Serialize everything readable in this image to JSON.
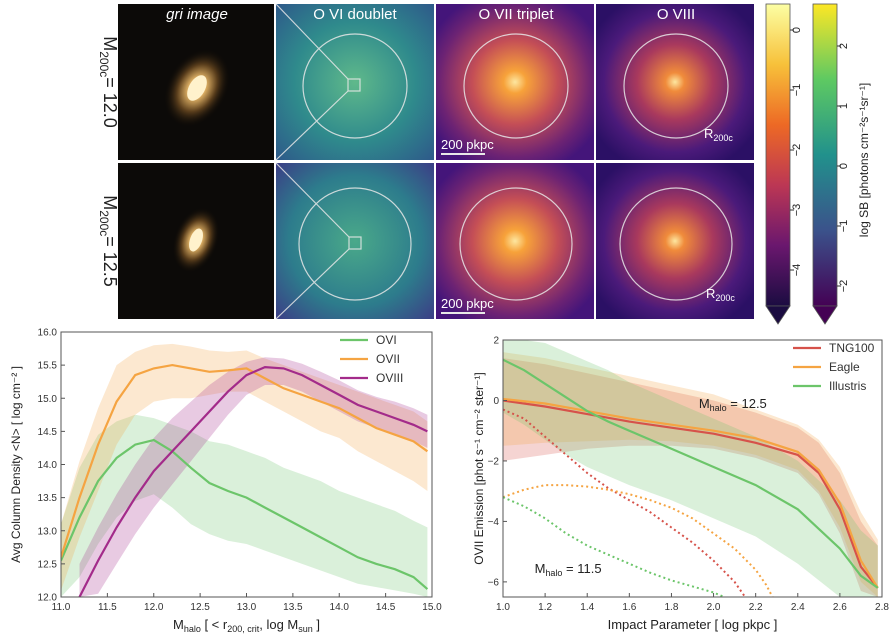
{
  "top_panel": {
    "column_titles": [
      "gri image",
      "O VI doublet",
      "O VII triplet",
      "O VIII"
    ],
    "row_labels": [
      {
        "sym": "M",
        "sub": "200c",
        "val": "= 12.0"
      },
      {
        "sym": "M",
        "sub": "200c",
        "val": "= 12.5"
      }
    ],
    "scalebar_label": "200 pkpc",
    "radius_label": {
      "sym": "R",
      "sub": "200c"
    },
    "colorbar_label": "log SB [photons cm⁻²s⁻¹sr⁻¹]",
    "colorbar_inferno_ticks": [
      "0",
      "−1",
      "−2",
      "−3",
      "−4"
    ],
    "colorbar_viridis_ticks": [
      "2",
      "1",
      "0",
      "−1",
      "−2"
    ]
  },
  "chart_data": [
    {
      "type": "line",
      "ylabel": "Avg Column Density <N> [ log cm⁻² ]",
      "xlabel": {
        "sym": "M",
        "sub": "halo",
        "rest": " [ < r",
        "sub2": "200, crit",
        "rest2": ", log M",
        "sub3": "sun",
        "rest3": " ]"
      },
      "xlim": [
        11.0,
        15.0
      ],
      "ylim": [
        12.0,
        16.0
      ],
      "xticks": [
        "11.0",
        "11.5",
        "12.0",
        "12.5",
        "13.0",
        "13.5",
        "14.0",
        "14.5",
        "15.0"
      ],
      "yticks": [
        "12.0",
        "12.5",
        "13.0",
        "13.5",
        "14.0",
        "14.5",
        "15.0",
        "15.5",
        "16.0"
      ],
      "legend_position": "top-right",
      "series": [
        {
          "name": "OVI",
          "color": "#6cc56a",
          "x": [
            11.0,
            11.2,
            11.4,
            11.6,
            11.8,
            12.0,
            12.2,
            12.4,
            12.6,
            12.8,
            13.0,
            13.2,
            13.4,
            13.6,
            13.8,
            14.0,
            14.2,
            14.4,
            14.6,
            14.8,
            14.95
          ],
          "y": [
            12.55,
            13.2,
            13.75,
            14.1,
            14.3,
            14.37,
            14.2,
            13.95,
            13.72,
            13.6,
            13.5,
            13.35,
            13.2,
            13.05,
            12.9,
            12.75,
            12.6,
            12.5,
            12.42,
            12.3,
            12.12
          ],
          "lo": [
            12.0,
            12.3,
            12.8,
            13.2,
            13.45,
            13.55,
            13.35,
            13.1,
            12.95,
            12.85,
            12.8,
            12.7,
            12.6,
            12.5,
            12.4,
            12.3,
            12.2,
            12.15,
            12.1,
            12.05,
            12.0
          ],
          "hi": [
            13.1,
            13.95,
            14.45,
            14.65,
            14.75,
            14.7,
            14.6,
            14.5,
            14.35,
            14.3,
            14.2,
            14.1,
            13.95,
            13.85,
            13.75,
            13.6,
            13.5,
            13.4,
            13.3,
            13.15,
            13.05
          ]
        },
        {
          "name": "OVII",
          "color": "#f5a442",
          "x": [
            11.0,
            11.2,
            11.4,
            11.6,
            11.8,
            12.0,
            12.2,
            12.4,
            12.6,
            12.8,
            13.0,
            13.2,
            13.4,
            13.6,
            13.8,
            14.0,
            14.2,
            14.4,
            14.6,
            14.8,
            14.95
          ],
          "y": [
            12.6,
            13.5,
            14.3,
            14.95,
            15.35,
            15.45,
            15.5,
            15.45,
            15.4,
            15.42,
            15.45,
            15.3,
            15.15,
            15.05,
            14.95,
            14.85,
            14.7,
            14.55,
            14.45,
            14.35,
            14.2
          ],
          "lo": [
            12.1,
            12.9,
            13.6,
            14.3,
            14.75,
            14.95,
            15.0,
            15.0,
            15.05,
            15.1,
            15.1,
            14.95,
            14.8,
            14.65,
            14.5,
            14.4,
            14.2,
            14.05,
            13.9,
            13.75,
            13.6
          ],
          "hi": [
            13.1,
            14.05,
            14.85,
            15.5,
            15.7,
            15.8,
            15.82,
            15.78,
            15.72,
            15.7,
            15.72,
            15.6,
            15.5,
            15.4,
            15.3,
            15.2,
            15.1,
            15.0,
            14.9,
            14.8,
            14.65
          ]
        },
        {
          "name": "OVIII",
          "color": "#a32b8a",
          "x": [
            11.2,
            11.4,
            11.6,
            11.8,
            12.0,
            12.2,
            12.4,
            12.6,
            12.8,
            13.0,
            13.2,
            13.4,
            13.6,
            13.8,
            14.0,
            14.2,
            14.4,
            14.6,
            14.8,
            14.95
          ],
          "y": [
            12.0,
            12.55,
            13.05,
            13.5,
            13.9,
            14.2,
            14.5,
            14.8,
            15.1,
            15.35,
            15.47,
            15.45,
            15.35,
            15.2,
            15.05,
            14.9,
            14.8,
            14.7,
            14.6,
            14.5
          ],
          "lo": [
            12.0,
            12.05,
            12.5,
            12.95,
            13.35,
            13.7,
            14.05,
            14.4,
            14.75,
            15.05,
            15.2,
            15.2,
            15.1,
            14.95,
            14.8,
            14.65,
            14.55,
            14.45,
            14.35,
            14.25
          ],
          "hi": [
            12.5,
            13.05,
            13.55,
            14.0,
            14.4,
            14.7,
            14.95,
            15.2,
            15.4,
            15.55,
            15.62,
            15.6,
            15.52,
            15.4,
            15.27,
            15.12,
            15.02,
            14.95,
            14.85,
            14.75
          ]
        }
      ]
    },
    {
      "type": "line",
      "ylabel": "OVII Emission [phot s⁻¹ cm⁻² ster⁻¹]",
      "xlabel": "Impact Parameter [ log pkpc ]",
      "xlim": [
        1.0,
        2.8
      ],
      "ylim": [
        -6.5,
        2.0
      ],
      "xticks": [
        "1.0",
        "1.2",
        "1.4",
        "1.6",
        "1.8",
        "2.0",
        "2.2",
        "2.4",
        "2.6",
        "2.8"
      ],
      "yticks": [
        "−6",
        "−4",
        "−2",
        "0",
        "2"
      ],
      "legend_position": "top-right",
      "annotations": [
        {
          "sym": "M",
          "sub": "halo",
          "val": " = 12.5",
          "x": 1.93,
          "y": -0.25
        },
        {
          "sym": "M",
          "sub": "halo",
          "val": " = 11.5",
          "x": 1.15,
          "y": -5.7
        }
      ],
      "series": [
        {
          "name": "TNG100",
          "color": "#d6524a",
          "x": [
            1.0,
            1.2,
            1.4,
            1.6,
            1.8,
            2.0,
            2.2,
            2.4,
            2.5,
            2.6,
            2.7,
            2.78
          ],
          "y": [
            0.0,
            -0.2,
            -0.45,
            -0.7,
            -0.9,
            -1.1,
            -1.4,
            -1.8,
            -2.4,
            -3.6,
            -5.5,
            -6.2
          ],
          "lo": [
            -2.0,
            -1.8,
            -1.6,
            -1.5,
            -1.5,
            -1.6,
            -1.9,
            -2.4,
            -3.1,
            -4.4,
            -6.3,
            -6.5
          ],
          "hi": [
            1.4,
            1.2,
            0.9,
            0.6,
            0.3,
            0.0,
            -0.4,
            -0.9,
            -1.4,
            -2.4,
            -4.0,
            -4.8
          ]
        },
        {
          "name": "Eagle",
          "color": "#f5a442",
          "x": [
            1.0,
            1.2,
            1.4,
            1.6,
            1.8,
            2.0,
            2.2,
            2.4,
            2.5,
            2.6,
            2.7,
            2.78
          ],
          "y": [
            0.05,
            -0.1,
            -0.35,
            -0.6,
            -0.8,
            -1.0,
            -1.25,
            -1.7,
            -2.3,
            -3.4,
            -5.3,
            -6.2
          ],
          "lo": [
            -1.5,
            -1.4,
            -1.35,
            -1.3,
            -1.35,
            -1.5,
            -1.8,
            -2.3,
            -3.0,
            -4.2,
            -6.0,
            -6.5
          ],
          "hi": [
            1.6,
            1.4,
            1.1,
            0.8,
            0.5,
            0.2,
            -0.3,
            -0.8,
            -1.3,
            -2.2,
            -3.7,
            -4.6
          ]
        },
        {
          "name": "Illustris",
          "color": "#6cc56a",
          "x": [
            1.0,
            1.1,
            1.2,
            1.3,
            1.4,
            1.5,
            1.6,
            1.8,
            2.0,
            2.2,
            2.4,
            2.6,
            2.7,
            2.78
          ],
          "y": [
            1.35,
            1.0,
            0.55,
            0.1,
            -0.35,
            -0.7,
            -1.0,
            -1.6,
            -2.2,
            -2.8,
            -3.6,
            -4.9,
            -5.8,
            -6.2
          ],
          "lo": [
            -0.4,
            -0.8,
            -1.3,
            -1.8,
            -2.2,
            -2.5,
            -2.8,
            -3.3,
            -3.9,
            -4.5,
            -5.4,
            -6.5,
            -6.5,
            -6.5
          ],
          "hi": [
            2.0,
            2.0,
            1.9,
            1.6,
            1.3,
            1.0,
            0.6,
            0.0,
            -0.6,
            -1.2,
            -2.0,
            -3.3,
            -4.3,
            -4.8
          ]
        }
      ],
      "dotted_series": [
        {
          "name": "",
          "color": "#d6524a",
          "x": [
            1.0,
            1.1,
            1.2,
            1.3,
            1.4,
            1.5,
            1.6,
            1.7,
            1.8,
            1.9,
            2.0,
            2.1,
            2.15
          ],
          "y": [
            -0.3,
            -0.6,
            -1.2,
            -1.8,
            -2.4,
            -2.9,
            -3.3,
            -3.7,
            -4.2,
            -4.7,
            -5.3,
            -6.0,
            -6.5
          ]
        },
        {
          "name": "",
          "color": "#f5a442",
          "x": [
            1.0,
            1.1,
            1.2,
            1.3,
            1.4,
            1.5,
            1.6,
            1.7,
            1.8,
            1.9,
            2.0,
            2.1,
            2.2,
            2.25,
            2.28
          ],
          "y": [
            -3.2,
            -2.95,
            -2.8,
            -2.8,
            -2.85,
            -2.95,
            -3.1,
            -3.3,
            -3.55,
            -3.9,
            -4.4,
            -4.9,
            -5.6,
            -6.1,
            -6.5
          ]
        },
        {
          "name": "",
          "color": "#6cc56a",
          "x": [
            1.0,
            1.1,
            1.2,
            1.3,
            1.4,
            1.5,
            1.6,
            1.7,
            1.8,
            1.9,
            2.0,
            2.05
          ],
          "y": [
            -3.2,
            -3.5,
            -3.9,
            -4.4,
            -4.8,
            -5.1,
            -5.4,
            -5.7,
            -5.95,
            -6.15,
            -6.35,
            -6.5
          ]
        }
      ]
    }
  ]
}
